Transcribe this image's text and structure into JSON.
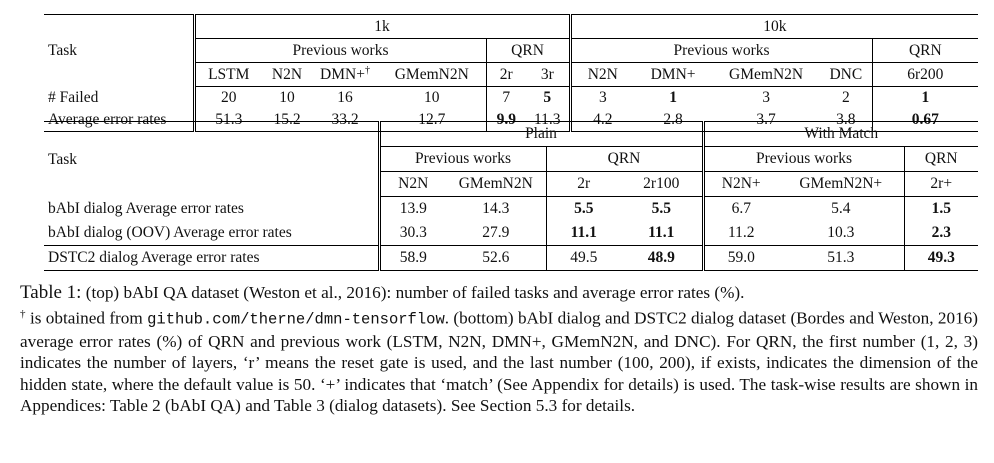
{
  "top_table": {
    "task_label": "Task",
    "group_1k": "1k",
    "group_10k": "10k",
    "prev_works": "Previous works",
    "qrn": "QRN",
    "dagger": "†",
    "columns": [
      "LSTM",
      "N2N",
      "DMN+",
      "GMemN2N",
      "2r",
      "3r",
      "N2N",
      "DMN+",
      "GMemN2N",
      "DNC",
      "6r200"
    ],
    "rows": [
      {
        "label": "# Failed",
        "values": [
          "20",
          "10",
          "16",
          "10",
          "7",
          "5",
          "3",
          "1",
          "3",
          "2",
          "1"
        ],
        "bold": [
          5,
          7,
          10
        ]
      },
      {
        "label": "Average error rates",
        "values": [
          "51.3",
          "15.2",
          "33.2",
          "12.7",
          "9.9",
          "11.3",
          "4.2",
          "2.8",
          "3.7",
          "3.8",
          "0.67"
        ],
        "bold": [
          4,
          10
        ]
      }
    ]
  },
  "bottom_table": {
    "task_label": "Task",
    "group_plain": "Plain",
    "group_match": "With Match",
    "prev_works": "Previous works",
    "qrn": "QRN",
    "columns": [
      "N2N",
      "GMemN2N",
      "2r",
      "2r100",
      "N2N+",
      "GMemN2N+",
      "2r+"
    ],
    "rows": [
      {
        "label": "bAbI dialog Average error rates",
        "values": [
          "13.9",
          "14.3",
          "5.5",
          "5.5",
          "6.7",
          "5.4",
          "1.5"
        ],
        "bold": [
          2,
          3,
          6
        ]
      },
      {
        "label": "bAbI dialog (OOV) Average error rates",
        "values": [
          "30.3",
          "27.9",
          "11.1",
          "11.1",
          "11.2",
          "10.3",
          "2.3"
        ],
        "bold": [
          2,
          3,
          6
        ]
      },
      {
        "label": "DSTC2 dialog Average error rates",
        "values": [
          "58.9",
          "52.6",
          "49.5",
          "48.9",
          "59.0",
          "51.3",
          "49.3"
        ],
        "bold": [
          3,
          6
        ]
      }
    ]
  },
  "caption": {
    "label": "Table 1:",
    "part1": " (top) bAbI QA dataset (Weston et al., 2016): number of failed tasks and average error rates (%).",
    "dagger": "†",
    "part2": " is obtained from ",
    "url": "github.com/therne/dmn-tensorflow",
    "part3": ". (bottom) bAbI dialog and DSTC2 dialog dataset (Bordes and Weston, 2016) average error rates (%) of QRN and previous work (LSTM, N2N, DMN+, GMemN2N, and DNC). For QRN, the first number (1, 2, 3) indicates the number of layers, ‘r’ means the reset gate is used, and the last number (100, 200), if exists, indicates the dimension of the hidden state, where the default value is 50. ‘+’ indicates that ‘match’ (See Appendix for details) is used. The task-wise results are shown in Appendices: Table 2 (bAbI QA) and Table 3 (dialog datasets). See Section 5.3 for details."
  }
}
